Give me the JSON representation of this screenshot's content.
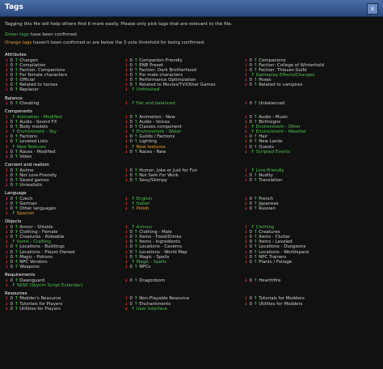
{
  "window": {
    "title": "Tags",
    "close_label": "x"
  },
  "intro": "Tagging this file will help others find it more easily. Please only pick tags that are relevant to the file.",
  "legend": {
    "green_word": "Green tags",
    "green_rest": " have been confirmed.",
    "orange_word": "Orange tags",
    "orange_rest": " haven't been confirmed or are below the 3 vote threshold for being confirmed."
  },
  "colors": {
    "confirmed": "#4fc34f",
    "pending": "#e8a020",
    "down": "#e03030",
    "up": "#40c040"
  },
  "sections": [
    {
      "title": "Attributes",
      "rows": [
        [
          {
            "label": "Chargen",
            "count": "0",
            "state": "normal"
          },
          {
            "label": "Companion Friendly",
            "count": "0",
            "state": "normal"
          },
          {
            "label": "Companions",
            "count": "0",
            "state": "normal"
          }
        ],
        [
          {
            "label": "Compilation",
            "count": "0",
            "state": "normal"
          },
          {
            "label": "ENB Preset",
            "count": "0",
            "state": "normal"
          },
          {
            "label": "Faction: College of Winterhold",
            "count": "0",
            "state": "normal"
          }
        ],
        [
          {
            "label": "Faction: Companions",
            "count": "0",
            "state": "normal"
          },
          {
            "label": "Faction: Dark Brotherhood",
            "count": "0",
            "state": "normal"
          },
          {
            "label": "Faction: Thieves Guild",
            "count": "0",
            "state": "normal"
          }
        ],
        [
          {
            "label": "For female characters",
            "count": "0",
            "state": "normal"
          },
          {
            "label": "For male characters",
            "count": "0",
            "state": "normal"
          },
          {
            "label": "Gameplay Effects/Changes",
            "count": "",
            "state": "confirmed"
          }
        ],
        [
          {
            "label": "Official",
            "count": "0",
            "state": "normal"
          },
          {
            "label": "Performance Optimization",
            "count": "0",
            "state": "normal"
          },
          {
            "label": "Poses",
            "count": "0",
            "state": "normal"
          }
        ],
        [
          {
            "label": "Related to horses",
            "count": "0",
            "state": "normal"
          },
          {
            "label": "Related to Movies/TV/Other Games",
            "count": "0",
            "state": "normal"
          },
          {
            "label": "Related to vampires",
            "count": "0",
            "state": "normal"
          }
        ],
        [
          {
            "label": "Replacer",
            "count": "0",
            "state": "normal"
          },
          {
            "label": "Unfinished",
            "count": "",
            "state": "confirmed"
          },
          null
        ]
      ]
    },
    {
      "title": "Balance",
      "rows": [
        [
          {
            "label": "Cheating",
            "count": "0",
            "state": "normal"
          },
          {
            "label": "Fair and balanced",
            "count": "",
            "state": "confirmed"
          },
          {
            "label": "Unbalanced",
            "count": "0",
            "state": "normal"
          }
        ]
      ]
    },
    {
      "title": "Components",
      "rows": [
        [
          {
            "label": "Animation - Modified",
            "count": "",
            "state": "confirmed"
          },
          {
            "label": "Animation - New",
            "count": "0",
            "state": "normal"
          },
          {
            "label": "Audio - Music",
            "count": "0",
            "state": "normal"
          }
        ],
        [
          {
            "label": "Audio - Sound FX",
            "count": "0",
            "state": "normal"
          },
          {
            "label": "Audio - Voices",
            "count": "0",
            "state": "normal"
          },
          {
            "label": "Birthsigns",
            "count": "0",
            "state": "normal"
          }
        ],
        [
          {
            "label": "Body models",
            "count": "0",
            "state": "normal"
          },
          {
            "label": "Classes component",
            "count": "0",
            "state": "normal"
          },
          {
            "label": "Environment - Other",
            "count": "",
            "state": "confirmed"
          }
        ],
        [
          {
            "label": "Environment - Sky",
            "count": "",
            "state": "confirmed"
          },
          {
            "label": "Environment - Water",
            "count": "",
            "state": "confirmed"
          },
          {
            "label": "Environment - Weather",
            "count": "",
            "state": "confirmed"
          }
        ],
        [
          {
            "label": "Factions",
            "count": "0",
            "state": "normal"
          },
          {
            "label": "Guilds / Factions",
            "count": "0",
            "state": "normal"
          },
          {
            "label": "Hair",
            "count": "0",
            "state": "normal"
          }
        ],
        [
          {
            "label": "Leveled Lists",
            "count": "0",
            "state": "normal"
          },
          {
            "label": "Lighting",
            "count": "0",
            "state": "normal"
          },
          {
            "label": "New Lands",
            "count": "0",
            "state": "normal"
          }
        ],
        [
          {
            "label": "New Textures",
            "count": "",
            "state": "confirmed"
          },
          {
            "label": "New textures",
            "count": "",
            "state": "pending"
          },
          {
            "label": "Quests",
            "count": "0",
            "state": "normal"
          }
        ],
        [
          {
            "label": "Races - Modified",
            "count": "0",
            "state": "normal"
          },
          {
            "label": "Races - New",
            "count": "0",
            "state": "normal"
          },
          {
            "label": "Scripted Events",
            "count": "",
            "state": "confirmed"
          }
        ],
        [
          {
            "label": "Video",
            "count": "0",
            "state": "normal"
          },
          null,
          null
        ]
      ]
    },
    {
      "title": "Content and realism",
      "rows": [
        [
          {
            "label": "Anime",
            "count": "0",
            "state": "normal"
          },
          {
            "label": "Humor, Joke or Just for Fun",
            "count": "0",
            "state": "normal"
          },
          {
            "label": "Lore-Friendly",
            "count": "",
            "state": "confirmed"
          }
        ],
        [
          {
            "label": "Not Lore-Friendly",
            "count": "0",
            "state": "normal"
          },
          {
            "label": "Not Safe For Work",
            "count": "0",
            "state": "normal"
          },
          {
            "label": "Nudity",
            "count": "0",
            "state": "normal"
          }
        ],
        [
          {
            "label": "Saved games",
            "count": "0",
            "state": "normal"
          },
          {
            "label": "Sexy/Skimpy",
            "count": "0",
            "state": "normal"
          },
          {
            "label": "Translation",
            "count": "0",
            "state": "normal"
          }
        ],
        [
          {
            "label": "Unrealistic",
            "count": "0",
            "state": "normal"
          },
          null,
          null
        ]
      ]
    },
    {
      "title": "Language",
      "rows": [
        [
          {
            "label": "Czech",
            "count": "0",
            "state": "normal"
          },
          {
            "label": "English",
            "count": "",
            "state": "confirmed"
          },
          {
            "label": "French",
            "count": "0",
            "state": "normal"
          }
        ],
        [
          {
            "label": "German",
            "count": "0",
            "state": "normal"
          },
          {
            "label": "Italian",
            "count": "",
            "state": "confirmed"
          },
          {
            "label": "Japanese",
            "count": "0",
            "state": "normal"
          }
        ],
        [
          {
            "label": "Other languages",
            "count": "0",
            "state": "normal"
          },
          {
            "label": "Polish",
            "count": "",
            "state": "pending"
          },
          {
            "label": "Russian",
            "count": "0",
            "state": "normal"
          }
        ],
        [
          {
            "label": "Spanish",
            "count": "",
            "state": "pending"
          },
          null,
          null
        ]
      ]
    },
    {
      "title": "Objects",
      "rows": [
        [
          {
            "label": "Armor - Shields",
            "count": "0",
            "state": "normal"
          },
          {
            "label": "Armour",
            "count": "",
            "state": "confirmed"
          },
          {
            "label": "Clothing",
            "count": "",
            "state": "confirmed"
          }
        ],
        [
          {
            "label": "Clothing - Female",
            "count": "0",
            "state": "normal"
          },
          {
            "label": "Clothing - Male",
            "count": "0",
            "state": "normal"
          },
          {
            "label": "Creatures",
            "count": "0",
            "state": "normal"
          }
        ],
        [
          {
            "label": "Creatures - Rideable",
            "count": "0",
            "state": "normal"
          },
          {
            "label": "Items - Food/Drinks",
            "count": "0",
            "state": "normal"
          },
          {
            "label": "Items - Clutter",
            "count": "0",
            "state": "normal"
          }
        ],
        [
          {
            "label": "Items - Crafting",
            "count": "",
            "state": "confirmed"
          },
          {
            "label": "Items - Ingredients",
            "count": "0",
            "state": "normal"
          },
          {
            "label": "Items - Leveled",
            "count": "0",
            "state": "normal"
          }
        ],
        [
          {
            "label": "Locations - Buildings",
            "count": "0",
            "state": "normal"
          },
          {
            "label": "Locations - Caverns",
            "count": "0",
            "state": "normal"
          },
          {
            "label": "Locations - Dungeons",
            "count": "0",
            "state": "normal"
          }
        ],
        [
          {
            "label": "Locations - Player-Owned",
            "count": "0",
            "state": "normal"
          },
          {
            "label": "Locations - World Map",
            "count": "0",
            "state": "normal"
          },
          {
            "label": "Locations - Worldspace",
            "count": "0",
            "state": "normal"
          }
        ],
        [
          {
            "label": "Magic - Potions",
            "count": "0",
            "state": "normal"
          },
          {
            "label": "Magic - Spells",
            "count": "0",
            "state": "normal"
          },
          {
            "label": "NPC Trainers",
            "count": "0",
            "state": "normal"
          }
        ],
        [
          {
            "label": "NPC Vendors",
            "count": "0",
            "state": "normal"
          },
          {
            "label": "Magic - Spells",
            "count": "",
            "state": "confirmed"
          },
          {
            "label": "Plants / Foliage",
            "count": "0",
            "state": "normal"
          }
        ],
        [
          {
            "label": "Weapons",
            "count": "0",
            "state": "normal"
          },
          {
            "label": "NPCs",
            "count": "0",
            "state": "normal"
          },
          null
        ]
      ]
    },
    {
      "title": "Requirements",
      "rows": [
        [
          {
            "label": "Dawnguard",
            "count": "0",
            "state": "normal"
          },
          {
            "label": "Dragonborn",
            "count": "0",
            "state": "normal"
          },
          {
            "label": "Hearthfire",
            "count": "0",
            "state": "normal"
          }
        ],
        [
          {
            "label": "SKSE (Skyrim Script Extender)",
            "count": "",
            "state": "confirmed"
          },
          null,
          null
        ]
      ]
    },
    {
      "title": "Resources",
      "rows": [
        [
          {
            "label": "Modder's Resource",
            "count": "0",
            "state": "normal"
          },
          {
            "label": "Non-Playable Resource",
            "count": "0",
            "state": "normal"
          },
          {
            "label": "Tutorials for Modders",
            "count": "0",
            "state": "normal"
          }
        ],
        [
          {
            "label": "Tutorials for Players",
            "count": "0",
            "state": "normal"
          },
          {
            "label": "Enchantments",
            "count": "0",
            "state": "normal"
          },
          {
            "label": "Utilities for Modders",
            "count": "0",
            "state": "normal"
          }
        ],
        [
          {
            "label": "Utilities for Players",
            "count": "0",
            "state": "normal"
          },
          {
            "label": "User Interface",
            "count": "",
            "state": "confirmed"
          },
          null
        ]
      ]
    }
  ]
}
